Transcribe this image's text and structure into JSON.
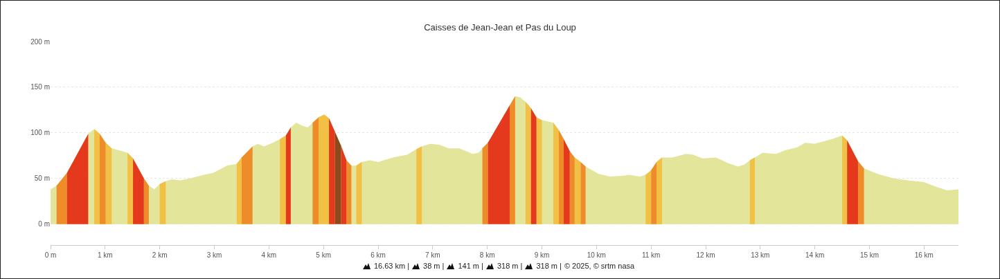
{
  "chart_data": {
    "type": "area",
    "title": "Caisses de Jean-Jean et Pas du Loup",
    "xlim": [
      0,
      16.63
    ],
    "ylim": [
      -23,
      200
    ],
    "xticks": [
      {
        "value": 0,
        "label": "0 m"
      },
      {
        "value": 1,
        "label": "1 km"
      },
      {
        "value": 2,
        "label": "2 km"
      },
      {
        "value": 3,
        "label": "3 km"
      },
      {
        "value": 4,
        "label": "4 km"
      },
      {
        "value": 5,
        "label": "5 km"
      },
      {
        "value": 6,
        "label": "6 km"
      },
      {
        "value": 7,
        "label": "7 km"
      },
      {
        "value": 8,
        "label": "8 km"
      },
      {
        "value": 9,
        "label": "9 km"
      },
      {
        "value": 10,
        "label": "10 km"
      },
      {
        "value": 11,
        "label": "11 km"
      },
      {
        "value": 12,
        "label": "12 km"
      },
      {
        "value": 13,
        "label": "13 km"
      },
      {
        "value": 14,
        "label": "14 km"
      },
      {
        "value": 15,
        "label": "15 km"
      },
      {
        "value": 16,
        "label": "16 km"
      }
    ],
    "yticks": [
      {
        "value": 0,
        "label": "0 m"
      },
      {
        "value": 50,
        "label": "50 m"
      },
      {
        "value": 100,
        "label": "100 m"
      },
      {
        "value": 150,
        "label": "150 m"
      },
      {
        "value": 200,
        "label": "200 m"
      }
    ],
    "grid": "y",
    "marker": "none",
    "series": [
      {
        "color": "#e3e59a",
        "x": [
          0,
          0.11,
          0.3,
          0.69,
          0.8,
          0.9,
          1.01,
          1.12,
          1.31,
          1.41,
          1.51,
          1.71,
          1.8,
          1.9,
          2.0,
          2.11,
          2.22,
          2.38,
          2.55,
          2.81,
          2.98,
          3.23,
          3.41,
          3.5,
          3.7,
          3.8,
          3.91,
          4.07,
          4.2,
          4.31,
          4.4,
          4.5,
          4.6,
          4.71,
          4.8,
          4.91,
          5.01,
          5.1,
          5.21,
          5.32,
          5.42,
          5.51,
          5.6,
          5.7,
          5.85,
          6.0,
          6.27,
          6.53,
          6.7,
          6.8,
          6.95,
          7.12,
          7.29,
          7.48,
          7.61,
          7.73,
          7.84,
          7.91,
          8.01,
          8.41,
          8.51,
          8.6,
          8.7,
          8.8,
          8.9,
          9.0,
          9.21,
          9.31,
          9.4,
          9.51,
          9.6,
          9.71,
          9.8,
          10.04,
          10.25,
          10.5,
          10.59,
          10.8,
          10.9,
          11.0,
          11.1,
          11.2,
          11.39,
          11.64,
          11.77,
          11.94,
          12.19,
          12.4,
          12.59,
          12.7,
          12.81,
          12.9,
          13.04,
          13.29,
          13.46,
          13.67,
          13.82,
          13.99,
          14.31,
          14.5,
          14.59,
          14.79,
          14.9,
          15.15,
          15.45,
          15.7,
          16.0,
          16.17,
          16.42,
          16.63
        ],
        "values": [
          38,
          42,
          56,
          99,
          104,
          99,
          89,
          83,
          80,
          78,
          72,
          50,
          42,
          38,
          44,
          47,
          49,
          48,
          50,
          54,
          56,
          64,
          66,
          73,
          85,
          88,
          85,
          89,
          93,
          97,
          106,
          111,
          108,
          106,
          111,
          117,
          120,
          116,
          101,
          86,
          70,
          64,
          64,
          68,
          70,
          68,
          73,
          76,
          82,
          85,
          88,
          87,
          83,
          83,
          80,
          77,
          78,
          83,
          89,
          130,
          140,
          139,
          134,
          127,
          117,
          114,
          111,
          103,
          93,
          80,
          73,
          68,
          63,
          55,
          52,
          53,
          54,
          52,
          54,
          59,
          68,
          73,
          73,
          77,
          76,
          72,
          73,
          67,
          63,
          65,
          70,
          73,
          78,
          77,
          81,
          84,
          89,
          88,
          93,
          97,
          92,
          69,
          61,
          55,
          50,
          48,
          46,
          42,
          37,
          38
        ]
      },
      {
        "color": "#f2c044",
        "x": [
          0.8,
          0.9,
          null,
          1.01,
          1.12,
          null,
          1.41,
          1.51,
          null,
          2.0,
          2.11,
          null,
          3.41,
          3.5,
          null,
          4.2,
          4.31,
          null,
          4.91,
          5.01,
          5.1,
          null,
          5.6,
          5.7,
          null,
          6.7,
          6.8,
          null,
          8.7,
          8.8,
          null,
          8.9,
          9.0,
          null,
          9.21,
          9.31,
          null,
          9.6,
          9.71,
          null,
          10.9,
          11.0,
          null,
          11.1,
          11.2,
          null,
          12.81,
          12.9,
          null,
          14.5,
          14.59
        ],
        "values": [
          104,
          99,
          null,
          89,
          83,
          null,
          78,
          72,
          null,
          44,
          47,
          null,
          66,
          73,
          null,
          93,
          97,
          null,
          117,
          120,
          116,
          null,
          64,
          68,
          null,
          82,
          85,
          null,
          134,
          127,
          null,
          117,
          114,
          null,
          111,
          103,
          null,
          73,
          68,
          null,
          54,
          59,
          null,
          68,
          73,
          null,
          70,
          73,
          null,
          97,
          92
        ]
      },
      {
        "color": "#ef8c2a",
        "x": [
          0.11,
          0.3,
          null,
          0.9,
          1.01,
          null,
          1.71,
          1.8,
          null,
          3.5,
          3.7,
          null,
          4.8,
          4.91,
          null,
          5.42,
          5.51,
          null,
          7.91,
          8.01,
          null,
          8.41,
          8.51,
          null,
          9.31,
          9.4,
          null,
          9.51,
          9.6,
          null,
          9.71,
          9.8,
          null,
          11.0,
          11.1,
          null,
          14.79,
          14.9
        ],
        "values": [
          42,
          56,
          null,
          99,
          89,
          null,
          50,
          42,
          null,
          73,
          85,
          null,
          111,
          117,
          null,
          70,
          64,
          null,
          83,
          89,
          null,
          130,
          140,
          null,
          103,
          93,
          null,
          80,
          73,
          null,
          68,
          63,
          null,
          59,
          68,
          null,
          69,
          61
        ]
      },
      {
        "color": "#e5391e",
        "x": [
          0.3,
          0.69,
          null,
          1.51,
          1.71,
          null,
          4.31,
          4.4,
          null,
          5.1,
          5.21,
          null,
          5.32,
          5.42,
          null,
          8.01,
          8.41,
          null,
          8.8,
          8.9,
          null,
          9.4,
          9.51,
          null,
          14.59,
          14.79
        ],
        "values": [
          56,
          99,
          null,
          72,
          50,
          null,
          97,
          106,
          null,
          116,
          101,
          null,
          86,
          70,
          null,
          89,
          130,
          null,
          127,
          117,
          null,
          93,
          80,
          null,
          92,
          69
        ]
      },
      {
        "color": "#8b4a1c",
        "x": [
          5.21,
          5.32
        ],
        "values": [
          101,
          86
        ]
      }
    ],
    "annotations": [
      "16.63 km |",
      "38 m |",
      "141 m |",
      "318 m |",
      "318 m |",
      "© 2025, © srtm nasa"
    ]
  }
}
